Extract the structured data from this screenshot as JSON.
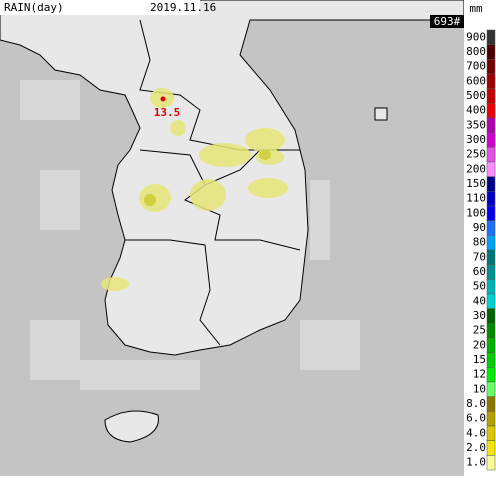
{
  "header": {
    "product": "RAIN(day)",
    "date": "2019.11.16",
    "count": "693#",
    "unit": "mm"
  },
  "annotation": {
    "value": "13.5"
  },
  "legend": [
    {
      "label": "900",
      "color": "#333333"
    },
    {
      "label": "800",
      "color": "#4c0000"
    },
    {
      "label": "700",
      "color": "#780000"
    },
    {
      "label": "600",
      "color": "#a00000"
    },
    {
      "label": "500",
      "color": "#c80000"
    },
    {
      "label": "400",
      "color": "#f00000"
    },
    {
      "label": "350",
      "color": "#b300b3"
    },
    {
      "label": "300",
      "color": "#d200d2"
    },
    {
      "label": "250",
      "color": "#e650e6"
    },
    {
      "label": "200",
      "color": "#ff8cff"
    },
    {
      "label": "150",
      "color": "#000090"
    },
    {
      "label": "110",
      "color": "#0000c8"
    },
    {
      "label": "100",
      "color": "#0000f5"
    },
    {
      "label": "90",
      "color": "#1e6eff"
    },
    {
      "label": "80",
      "color": "#00a0ff"
    },
    {
      "label": "70",
      "color": "#007777"
    },
    {
      "label": "60",
      "color": "#009090"
    },
    {
      "label": "50",
      "color": "#00b4b4"
    },
    {
      "label": "40",
      "color": "#00d2d2"
    },
    {
      "label": "30",
      "color": "#006400"
    },
    {
      "label": "25",
      "color": "#008c00"
    },
    {
      "label": "20",
      "color": "#00b400"
    },
    {
      "label": "15",
      "color": "#00d200"
    },
    {
      "label": "12",
      "color": "#00f000"
    },
    {
      "label": "10",
      "color": "#66ff66"
    },
    {
      "label": "8.0",
      "color": "#8c7800"
    },
    {
      "label": "6.0",
      "color": "#b4a000"
    },
    {
      "label": "4.0",
      "color": "#dcc800"
    },
    {
      "label": "2.0",
      "color": "#f0e600"
    },
    {
      "label": "1.0",
      "color": "#fafa96"
    }
  ]
}
